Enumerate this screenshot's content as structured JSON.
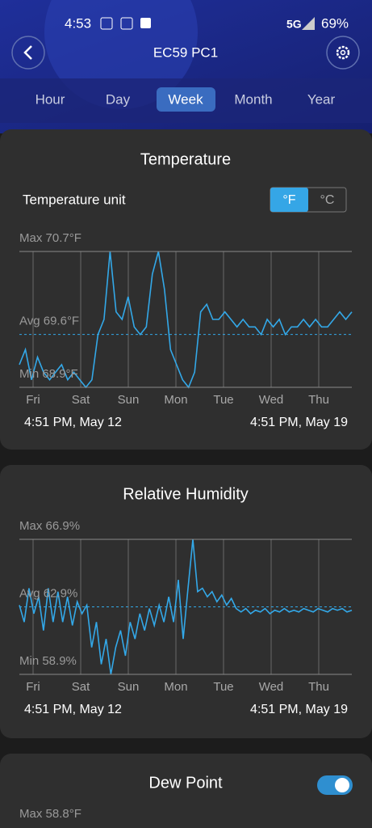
{
  "status_bar": {
    "time": "4:53",
    "network": "5G",
    "battery": "69%"
  },
  "header": {
    "title": "EC59 PC1"
  },
  "tabs": {
    "items": [
      "Hour",
      "Day",
      "Week",
      "Month",
      "Year"
    ],
    "selected": 2
  },
  "charts": [
    {
      "title": "Temperature",
      "unit_label": "Temperature unit",
      "unit_options": [
        "°F",
        "°C"
      ],
      "selected_unit": 0,
      "color": "#33a8e8",
      "days": [
        "Fri",
        "Sat",
        "Sun",
        "Mon",
        "Tue",
        "Wed",
        "Thu"
      ],
      "start": "4:51 PM,  May 12",
      "end": "4:51 PM,  May 19",
      "ylim": [
        68.9,
        70.7
      ],
      "yticks": [
        {
          "value": 70.7,
          "label": "Max 70.7°F"
        },
        {
          "value": 69.6,
          "label": "Avg 69.6°F"
        },
        {
          "value": 68.9,
          "label": "Min 68.9°F"
        }
      ],
      "values": [
        69.2,
        69.4,
        69.0,
        69.3,
        69.1,
        69.0,
        69.1,
        69.2,
        69.0,
        69.1,
        69.0,
        68.9,
        69.0,
        69.6,
        69.8,
        70.7,
        69.9,
        69.8,
        70.1,
        69.7,
        69.6,
        69.7,
        70.4,
        70.7,
        70.2,
        69.4,
        69.2,
        69.0,
        68.9,
        69.1,
        69.9,
        70.0,
        69.8,
        69.8,
        69.9,
        69.8,
        69.7,
        69.8,
        69.7,
        69.7,
        69.6,
        69.8,
        69.7,
        69.8,
        69.6,
        69.7,
        69.7,
        69.8,
        69.7,
        69.8,
        69.7,
        69.7,
        69.8,
        69.9,
        69.8,
        69.9
      ]
    },
    {
      "title": "Relative Humidity",
      "color": "#33a8e8",
      "days": [
        "Fri",
        "Sat",
        "Sun",
        "Mon",
        "Tue",
        "Wed",
        "Thu"
      ],
      "start": "4:51 PM,  May 12",
      "end": "4:51 PM,  May 19",
      "ylim": [
        58.9,
        66.9
      ],
      "yticks": [
        {
          "value": 66.9,
          "label": "Max 66.9%"
        },
        {
          "value": 62.9,
          "label": "Avg 62.9%"
        },
        {
          "value": 58.9,
          "label": "Min 58.9%"
        }
      ],
      "values": [
        63,
        62,
        64,
        62.5,
        63.5,
        61.5,
        64,
        62,
        63.8,
        62,
        63.5,
        61.8,
        63.2,
        62.5,
        63,
        60.5,
        62,
        59.5,
        61,
        58.9,
        60.5,
        61.5,
        60,
        62,
        61,
        62.5,
        61.5,
        62.8,
        61.8,
        63,
        62,
        63.5,
        62,
        64.5,
        61,
        64,
        66.9,
        63.8,
        64,
        63.5,
        63.8,
        63.2,
        63.6,
        63,
        63.4,
        62.8,
        62.6,
        62.8,
        62.5,
        62.7,
        62.6,
        62.8,
        62.5,
        62.7,
        62.6,
        62.8,
        62.6,
        62.7,
        62.6,
        62.8,
        62.7,
        62.6,
        62.8,
        62.7,
        62.6,
        62.8,
        62.7,
        62.8,
        62.6,
        62.7
      ]
    }
  ],
  "dew_point": {
    "title": "Dew Point",
    "max_label": "Max 58.8°F",
    "enabled": true
  }
}
